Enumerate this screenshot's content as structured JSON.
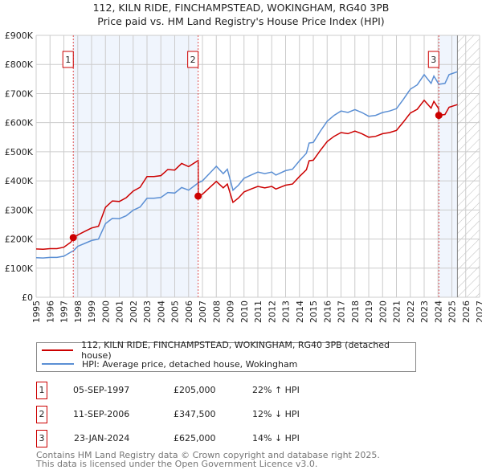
{
  "chart_data": {
    "type": "line",
    "title": "112, KILN RIDE, FINCHAMPSTEAD, WOKINGHAM, RG40 3PB",
    "subtitle": "Price paid vs. HM Land Registry's House Price Index (HPI)",
    "xlim": [
      1995,
      2027
    ],
    "ylim": [
      0,
      900000
    ],
    "ytick_labels": [
      "£0",
      "£100K",
      "£200K",
      "£300K",
      "£400K",
      "£500K",
      "£600K",
      "£700K",
      "£800K",
      "£900K"
    ],
    "xtick_labels": [
      "1995",
      "1996",
      "1997",
      "1998",
      "1999",
      "2000",
      "2001",
      "2002",
      "2003",
      "2004",
      "2005",
      "2006",
      "2007",
      "2008",
      "2009",
      "2010",
      "2011",
      "2012",
      "2013",
      "2014",
      "2015",
      "2016",
      "2017",
      "2018",
      "2019",
      "2020",
      "2021",
      "2022",
      "2023",
      "2024",
      "2025",
      "2026",
      "2027"
    ],
    "grid": true,
    "forecast_start": 2025.4,
    "series": [
      {
        "name": "112, KILN RIDE, FINCHAMPSTEAD, WOKINGHAM, RG40 3PB (detached house)",
        "color": "#cc0000",
        "x": [
          1995,
          1995.5,
          1996,
          1996.5,
          1997,
          1997.5,
          1997.7,
          1998,
          1998.5,
          1999,
          1999.5,
          2000,
          2000.5,
          2001,
          2001.5,
          2002,
          2002.5,
          2003,
          2003.5,
          2004,
          2004.5,
          2005,
          2005.5,
          2006,
          2006.69,
          2006.7,
          2007,
          2007.5,
          2008,
          2008.5,
          2008.8,
          2009.2,
          2009.6,
          2010,
          2010.5,
          2011,
          2011.5,
          2012,
          2012.3,
          2013,
          2013.5,
          2014,
          2014.5,
          2014.7,
          2015,
          2015.5,
          2016,
          2016.5,
          2017,
          2017.5,
          2018,
          2018.5,
          2019,
          2019.5,
          2020,
          2020.5,
          2021,
          2021.5,
          2022,
          2022.5,
          2023,
          2023.5,
          2023.7,
          2024.05,
          2024.06,
          2024.5,
          2024.8,
          2025.4
        ],
        "y": [
          166000,
          165000,
          167000,
          167000,
          172000,
          189000,
          205000,
          214000,
          226000,
          238000,
          244000,
          309000,
          331000,
          329000,
          342000,
          365000,
          378000,
          415000,
          415000,
          418000,
          439000,
          437000,
          460000,
          449000,
          470000,
          347500,
          354000,
          376000,
          398000,
          376000,
          389000,
          326000,
          341000,
          362000,
          372000,
          381000,
          376000,
          381000,
          372000,
          385000,
          389000,
          415000,
          438000,
          469000,
          471000,
          504000,
          535000,
          553000,
          566000,
          562000,
          571000,
          562000,
          550000,
          553000,
          562000,
          566000,
          573000,
          602000,
          633000,
          646000,
          677000,
          650000,
          673000,
          648000,
          625000,
          628000,
          653000,
          662000
        ]
      },
      {
        "name": "HPI: Average price, detached house, Wokingham",
        "color": "#5b8fd4",
        "x": [
          1995,
          1995.5,
          1996,
          1996.5,
          1997,
          1997.5,
          1997.7,
          1998,
          1998.5,
          1999,
          1999.5,
          2000,
          2000.5,
          2001,
          2001.5,
          2002,
          2002.5,
          2003,
          2003.5,
          2004,
          2004.5,
          2005,
          2005.5,
          2006,
          2006.7,
          2007,
          2007.5,
          2008,
          2008.5,
          2008.8,
          2009.2,
          2009.6,
          2010,
          2010.5,
          2011,
          2011.5,
          2012,
          2012.3,
          2013,
          2013.5,
          2014,
          2014.5,
          2014.7,
          2015,
          2015.5,
          2016,
          2016.5,
          2017,
          2017.5,
          2018,
          2018.5,
          2019,
          2019.5,
          2020,
          2020.5,
          2021,
          2021.5,
          2022,
          2022.5,
          2023,
          2023.5,
          2023.7,
          2024.06,
          2024.5,
          2024.8,
          2025.4
        ],
        "y": [
          136000,
          135000,
          137000,
          137000,
          141000,
          155000,
          160000,
          175000,
          185000,
          195000,
          200000,
          253000,
          271000,
          270000,
          280000,
          299000,
          310000,
          340000,
          340000,
          343000,
          360000,
          358000,
          377000,
          368000,
          393000,
          400000,
          425000,
          450000,
          425000,
          440000,
          368000,
          385000,
          409000,
          420000,
          430000,
          425000,
          430000,
          420000,
          435000,
          440000,
          469000,
          495000,
          530000,
          532000,
          570000,
          605000,
          625000,
          640000,
          635000,
          645000,
          635000,
          622000,
          625000,
          635000,
          640000,
          648000,
          680000,
          715000,
          730000,
          765000,
          735000,
          760000,
          732000,
          735000,
          765000,
          775000
        ]
      }
    ],
    "sales": [
      {
        "label": "1",
        "x": 1997.68,
        "y": 205000,
        "date": "05-SEP-1997",
        "price": "£205,000",
        "hpi": "22% ↑ HPI"
      },
      {
        "label": "2",
        "x": 2006.69,
        "y": 347500,
        "date": "11-SEP-2006",
        "price": "£347,500",
        "hpi": "12% ↓ HPI"
      },
      {
        "label": "3",
        "x": 2024.06,
        "y": 625000,
        "date": "23-JAN-2024",
        "price": "£625,000",
        "hpi": "14% ↓ HPI"
      }
    ]
  },
  "legend": {
    "price": "112, KILN RIDE, FINCHAMPSTEAD, WOKINGHAM, RG40 3PB (detached house)",
    "hpi": "HPI: Average price, detached house, Wokingham"
  },
  "footer": {
    "line1": "Contains HM Land Registry data © Crown copyright and database right 2025.",
    "line2": "This data is licensed under the Open Government Licence v3.0."
  }
}
